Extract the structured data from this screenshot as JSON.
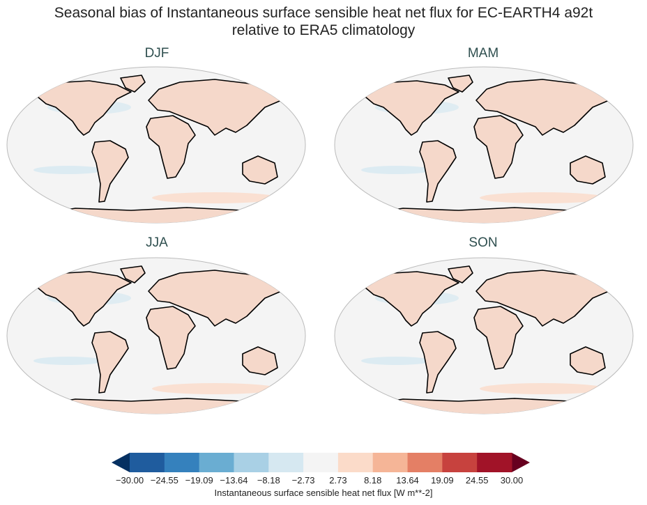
{
  "title_line1": "Seasonal bias of Instantaneous surface sensible heat net flux for EC-EARTH4 a92t",
  "title_line2": "relative to ERA5 climatology",
  "panels": [
    {
      "title": "DJF"
    },
    {
      "title": "MAM"
    },
    {
      "title": "JJA"
    },
    {
      "title": "SON"
    }
  ],
  "colorbar": {
    "label": "Instantaneous surface sensible heat net flux [W m**-2]",
    "ticks": [
      "−30.00",
      "−24.55",
      "−19.09",
      "−13.64",
      "−8.18",
      "−2.73",
      "2.73",
      "8.18",
      "13.64",
      "19.09",
      "24.55",
      "30.00"
    ],
    "extend": "both",
    "under_color": "#053061",
    "over_color": "#67001f",
    "colors": [
      "#1f5c9e",
      "#3581bd",
      "#6aadd2",
      "#a9d0e5",
      "#d6e8f1",
      "#f4f4f4",
      "#fbdbc9",
      "#f5b597",
      "#e47f65",
      "#c7423e",
      "#a11328"
    ]
  },
  "projection": "robinson",
  "colormap": "RdBu_r"
}
